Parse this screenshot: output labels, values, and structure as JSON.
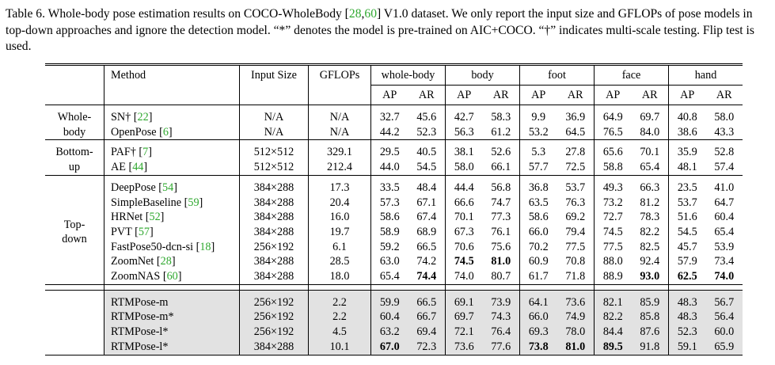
{
  "caption": {
    "part1": "Table 6. Whole-body pose estimation results on COCO-WholeBody [",
    "cite_a": "28",
    "sep": ",",
    "cite_b": "60",
    "part2": "] V1.0 dataset. We only report the input size and GFLOPs of pose models in top-down approaches and ignore the detection model. “*” denotes the model is pre-trained on AIC+COCO. “†” indicates multi-scale testing. Flip test is used."
  },
  "header": {
    "method": "Method",
    "input_size": "Input Size",
    "gflops": "GFLOPs",
    "groups": [
      "whole-body",
      "body",
      "foot",
      "face",
      "hand"
    ],
    "metrics": [
      "AP",
      "AR",
      "AP",
      "AR",
      "AP",
      "AR",
      "AP",
      "AR",
      "AP",
      "AR"
    ]
  },
  "sections": [
    {
      "label_lines": [
        "Whole-",
        "body"
      ],
      "rows": [
        {
          "name": "SN†",
          "cite": "22",
          "size": "N/A",
          "gflops": "N/A",
          "vals": [
            "32.7",
            "45.6",
            "42.7",
            "58.3",
            "9.9",
            "36.9",
            "64.9",
            "69.7",
            "40.8",
            "58.0"
          ],
          "bold": []
        },
        {
          "name": "OpenPose",
          "cite": "6",
          "size": "N/A",
          "gflops": "N/A",
          "vals": [
            "44.2",
            "52.3",
            "56.3",
            "61.2",
            "53.2",
            "64.5",
            "76.5",
            "84.0",
            "38.6",
            "43.3"
          ],
          "bold": []
        }
      ]
    },
    {
      "label_lines": [
        "Bottom-",
        "up"
      ],
      "rows": [
        {
          "name": "PAF†",
          "cite": "7",
          "size": "512×512",
          "gflops": "329.1",
          "vals": [
            "29.5",
            "40.5",
            "38.1",
            "52.6",
            "5.3",
            "27.8",
            "65.6",
            "70.1",
            "35.9",
            "52.8"
          ],
          "bold": []
        },
        {
          "name": "AE",
          "cite": "44",
          "size": "512×512",
          "gflops": "212.4",
          "vals": [
            "44.0",
            "54.5",
            "58.0",
            "66.1",
            "57.7",
            "72.5",
            "58.8",
            "65.4",
            "48.1",
            "57.4"
          ],
          "bold": []
        }
      ]
    },
    {
      "label_lines": [
        "Top-",
        "down"
      ],
      "rows": [
        {
          "name": "DeepPose",
          "cite": "54",
          "size": "384×288",
          "gflops": "17.3",
          "vals": [
            "33.5",
            "48.4",
            "44.4",
            "56.8",
            "36.8",
            "53.7",
            "49.3",
            "66.3",
            "23.5",
            "41.0"
          ],
          "bold": []
        },
        {
          "name": "SimpleBaseline",
          "cite": "59",
          "size": "384×288",
          "gflops": "20.4",
          "vals": [
            "57.3",
            "67.1",
            "66.6",
            "74.7",
            "63.5",
            "76.3",
            "73.2",
            "81.2",
            "53.7",
            "64.7"
          ],
          "bold": []
        },
        {
          "name": "HRNet",
          "cite": "52",
          "size": "384×288",
          "gflops": "16.0",
          "vals": [
            "58.6",
            "67.4",
            "70.1",
            "77.3",
            "58.6",
            "69.2",
            "72.7",
            "78.3",
            "51.6",
            "60.4"
          ],
          "bold": []
        },
        {
          "name": "PVT",
          "cite": "57",
          "size": "384×288",
          "gflops": "19.7",
          "vals": [
            "58.9",
            "68.9",
            "67.3",
            "76.1",
            "66.0",
            "79.4",
            "74.5",
            "82.2",
            "54.5",
            "65.4"
          ],
          "bold": []
        },
        {
          "name": "FastPose50-dcn-si",
          "cite": "18",
          "size": "256×192",
          "gflops": "6.1",
          "vals": [
            "59.2",
            "66.5",
            "70.6",
            "75.6",
            "70.2",
            "77.5",
            "77.5",
            "82.5",
            "45.7",
            "53.9"
          ],
          "bold": []
        },
        {
          "name": "ZoomNet",
          "cite": "28",
          "size": "384×288",
          "gflops": "28.5",
          "vals": [
            "63.0",
            "74.2",
            "74.5",
            "81.0",
            "60.9",
            "70.8",
            "88.0",
            "92.4",
            "57.9",
            "73.4"
          ],
          "bold": [
            2,
            3
          ]
        },
        {
          "name": "ZoomNAS",
          "cite": "60",
          "size": "384×288",
          "gflops": "18.0",
          "vals": [
            "65.4",
            "74.4",
            "74.0",
            "80.7",
            "61.7",
            "71.8",
            "88.9",
            "93.0",
            "62.5",
            "74.0"
          ],
          "bold": [
            1,
            7,
            8,
            9
          ]
        }
      ]
    }
  ],
  "rtm_rows": [
    {
      "name": "RTMPose-m",
      "size": "256×192",
      "gflops": "2.2",
      "vals": [
        "59.9",
        "66.5",
        "69.1",
        "73.9",
        "64.1",
        "73.6",
        "82.1",
        "85.9",
        "48.3",
        "56.7"
      ],
      "bold": []
    },
    {
      "name": "RTMPose-m*",
      "size": "256×192",
      "gflops": "2.2",
      "vals": [
        "60.4",
        "66.7",
        "69.7",
        "74.3",
        "66.0",
        "74.9",
        "82.2",
        "85.8",
        "48.3",
        "56.4"
      ],
      "bold": []
    },
    {
      "name": "RTMPose-l*",
      "size": "256×192",
      "gflops": "4.5",
      "vals": [
        "63.2",
        "69.4",
        "72.1",
        "76.4",
        "69.3",
        "78.0",
        "84.4",
        "87.6",
        "52.3",
        "60.0"
      ],
      "bold": []
    },
    {
      "name": "RTMPose-l*",
      "size": "384×288",
      "gflops": "10.1",
      "vals": [
        "67.0",
        "72.3",
        "73.6",
        "77.6",
        "73.8",
        "81.0",
        "89.5",
        "91.8",
        "59.1",
        "65.9"
      ],
      "bold": [
        0,
        4,
        5,
        6
      ]
    }
  ]
}
